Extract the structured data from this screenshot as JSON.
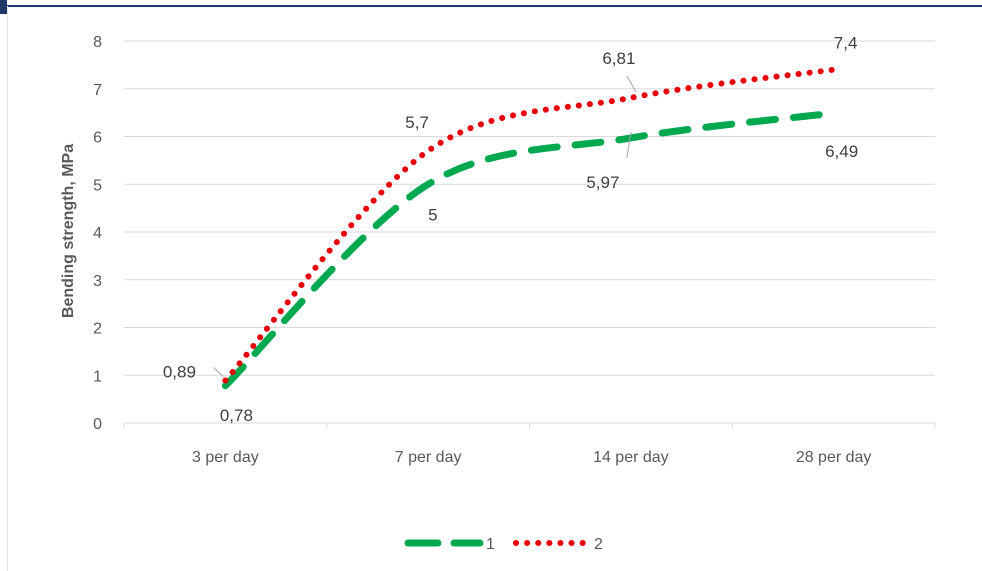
{
  "chart_data": {
    "type": "line",
    "categories": [
      "3 per day",
      "7 per day",
      "14 per day",
      "28 per day"
    ],
    "series": [
      {
        "name": "1",
        "values": [
          0.78,
          5,
          5.97,
          6.49
        ],
        "labels": [
          "0,78",
          "5",
          "5,97",
          "6,49"
        ],
        "color": "#00a84f",
        "dash": "long-dash"
      },
      {
        "name": "2",
        "values": [
          0.89,
          5.7,
          6.81,
          7.4
        ],
        "labels": [
          "0,89",
          "5,7",
          "6,81",
          "7,4"
        ],
        "color": "#e8000b",
        "dash": "dotted"
      }
    ],
    "ylabel": "Bending strength, MPa",
    "ylim": [
      0,
      8
    ],
    "yticks": [
      "0",
      "1",
      "2",
      "3",
      "4",
      "5",
      "6",
      "7",
      "8"
    ],
    "grid": true,
    "smooth": true,
    "legend_position": "bottom",
    "colors": {
      "frame_top": "#1f3864",
      "grid": "#d9d9d9",
      "axis_text": "#595959",
      "label_text": "#404040"
    }
  }
}
